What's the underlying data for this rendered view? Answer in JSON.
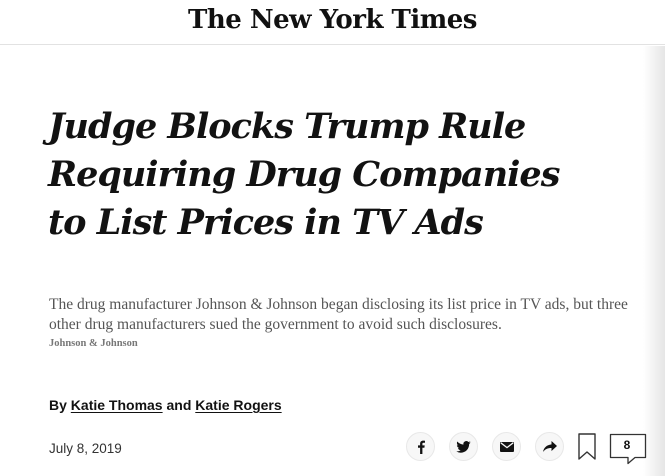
{
  "masthead": {
    "logo": "The New York Times"
  },
  "article": {
    "headline_lines": [
      "Judge Blocks Trump Rule",
      "Requiring Drug Companies",
      "to List Prices in TV Ads"
    ],
    "caption": "The drug manufacturer Johnson & Johnson began disclosing its list price in TV ads, but three other drug manufacturers sued the government to avoid such disclosures.",
    "photo_credit": "Johnson & Johnson",
    "byline": {
      "prefix": "By",
      "authors": [
        "Katie Thomas",
        "Katie Rogers"
      ],
      "conjunction": "and"
    },
    "date": "July 8, 2019"
  },
  "toolbar": {
    "share_icons": [
      "facebook-icon",
      "twitter-icon",
      "email-icon",
      "more-share-icon"
    ],
    "bookmark_icon": "bookmark-icon",
    "comment_icon": "comment-icon",
    "comment_count": "8"
  }
}
